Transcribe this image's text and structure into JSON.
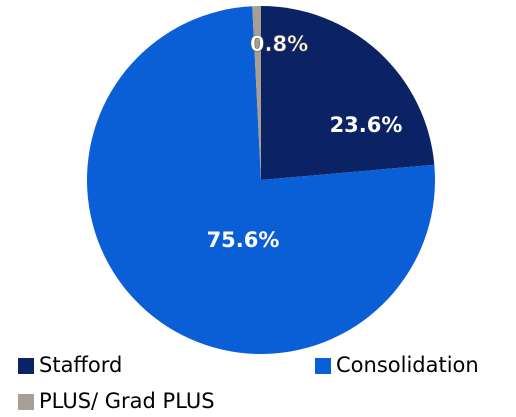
{
  "chart_data": {
    "type": "pie",
    "categories": [
      "Stafford",
      "Consolidation",
      "PLUS/ Grad PLUS"
    ],
    "values": [
      23.6,
      75.6,
      0.8
    ],
    "value_labels": [
      "23.6%",
      "75.6%",
      "0.8%"
    ],
    "colors": [
      "#0b2265",
      "#0b5fd6",
      "#a79e94"
    ],
    "legend": "bottom"
  }
}
